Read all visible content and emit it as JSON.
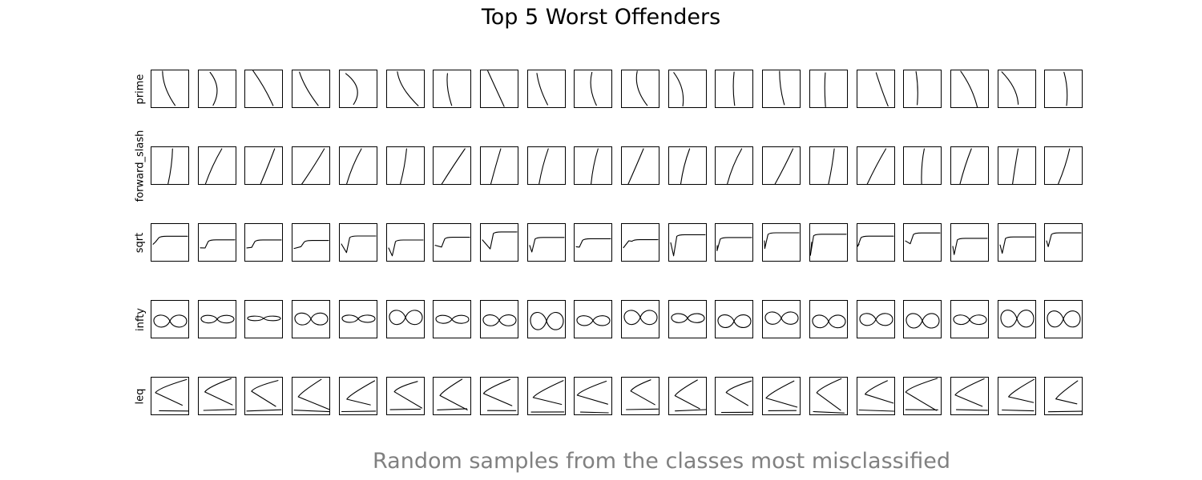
{
  "title": "Top 5 Worst Offenders",
  "caption": "Random samples from the classes most misclassified",
  "rows": [
    {
      "label": "prime",
      "glyph": "prime",
      "samples": 20
    },
    {
      "label": "forward_slash",
      "glyph": "forward_slash",
      "samples": 20
    },
    {
      "label": "sqrt",
      "glyph": "sqrt",
      "samples": 20
    },
    {
      "label": "infty",
      "glyph": "infty",
      "samples": 20
    },
    {
      "label": "leq",
      "glyph": "leq",
      "samples": 20
    }
  ],
  "colors": {
    "stroke": "#000000",
    "caption": "#808080"
  }
}
